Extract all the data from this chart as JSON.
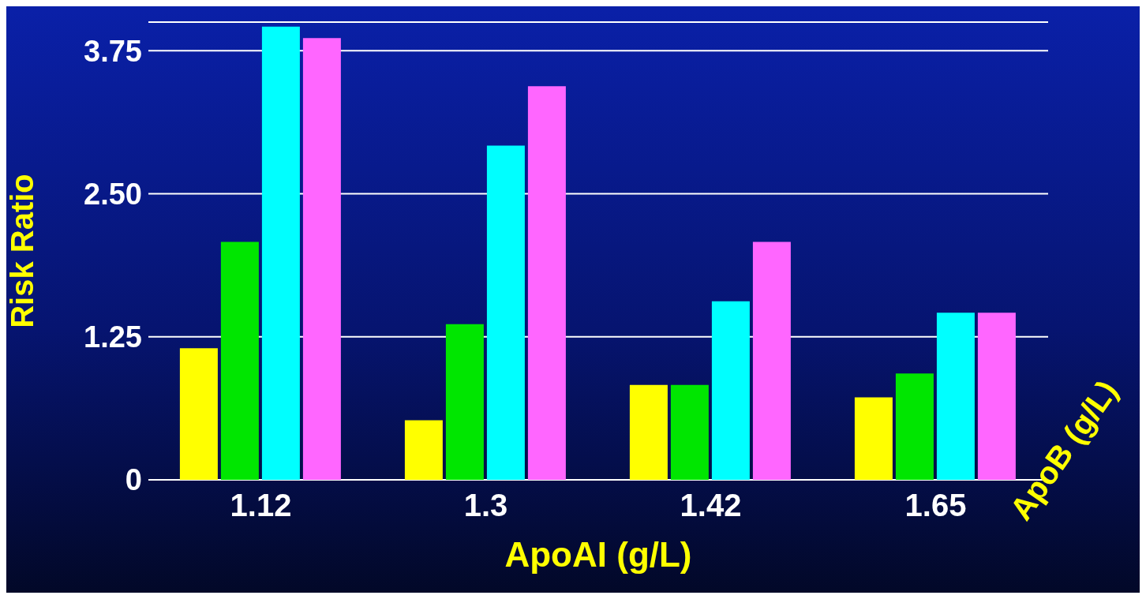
{
  "chart_data": {
    "type": "bar",
    "xlabel": "ApoAI (g/L)",
    "ylabel": "Risk Ratio",
    "categories": [
      "1.12",
      "1.3",
      "1.42",
      "1.65"
    ],
    "series": [
      {
        "color": "#ffff00",
        "values": [
          1.15,
          0.52,
          0.83,
          0.72
        ]
      },
      {
        "color": "#00e600",
        "values": [
          2.08,
          1.36,
          0.83,
          0.93
        ]
      },
      {
        "color": "#00ffff",
        "values": [
          3.96,
          2.92,
          1.56,
          1.46
        ]
      },
      {
        "color": "#ff66ff",
        "values": [
          3.86,
          3.44,
          2.08,
          1.46
        ]
      }
    ],
    "ylim": [
      0,
      4
    ],
    "yticks": [
      0,
      1.25,
      {
        "value": 2.5,
        "label": "2.50"
      },
      3.75
    ],
    "grid": "y",
    "legend": false,
    "annotations": [
      "ApoB (g/L)"
    ]
  }
}
